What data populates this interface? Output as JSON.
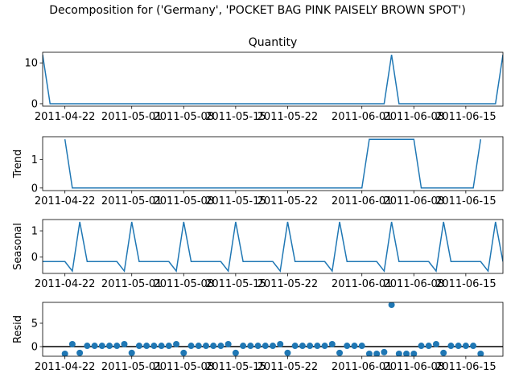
{
  "chart_data": [
    {
      "type": "line",
      "title": "Decomposition for ('Germany', 'POCKET BAG PINK PAISELY BROWN SPOT')",
      "subtitle": "Quantity",
      "color": "#1f77b4",
      "x": [
        "2011-04-19",
        "2011-04-20",
        "2011-04-21",
        "2011-04-22",
        "2011-04-23",
        "2011-04-24",
        "2011-04-25",
        "2011-04-26",
        "2011-04-27",
        "2011-04-28",
        "2011-04-29",
        "2011-04-30",
        "2011-05-01",
        "2011-05-02",
        "2011-05-03",
        "2011-05-04",
        "2011-05-05",
        "2011-05-06",
        "2011-05-07",
        "2011-05-08",
        "2011-05-09",
        "2011-05-10",
        "2011-05-11",
        "2011-05-12",
        "2011-05-13",
        "2011-05-14",
        "2011-05-15",
        "2011-05-16",
        "2011-05-17",
        "2011-05-18",
        "2011-05-19",
        "2011-05-20",
        "2011-05-21",
        "2011-05-22",
        "2011-05-23",
        "2011-05-24",
        "2011-05-25",
        "2011-05-26",
        "2011-05-27",
        "2011-05-28",
        "2011-05-29",
        "2011-05-30",
        "2011-05-31",
        "2011-06-01",
        "2011-06-02",
        "2011-06-03",
        "2011-06-04",
        "2011-06-05",
        "2011-06-06",
        "2011-06-07",
        "2011-06-08",
        "2011-06-09",
        "2011-06-10",
        "2011-06-11",
        "2011-06-12",
        "2011-06-13",
        "2011-06-14",
        "2011-06-15",
        "2011-06-16",
        "2011-06-17",
        "2011-06-18",
        "2011-06-19",
        "2011-06-20"
      ],
      "values": [
        12,
        0,
        0,
        0,
        0,
        0,
        0,
        0,
        0,
        0,
        0,
        0,
        0,
        0,
        0,
        0,
        0,
        0,
        0,
        0,
        0,
        0,
        0,
        0,
        0,
        0,
        0,
        0,
        0,
        0,
        0,
        0,
        0,
        0,
        0,
        0,
        0,
        0,
        0,
        0,
        0,
        0,
        0,
        0,
        0,
        0,
        0,
        12,
        0,
        0,
        0,
        0,
        0,
        0,
        0,
        0,
        0,
        0,
        0,
        0,
        0,
        0,
        12
      ],
      "xlim": [
        "2011-04-19",
        "2011-06-20"
      ],
      "xticks": [
        "2011-04-22",
        "2011-05-01",
        "2011-05-08",
        "2011-05-15",
        "2011-05-22",
        "2011-06-01",
        "2011-06-08",
        "2011-06-15"
      ],
      "ylim": [
        -0.6,
        12.6
      ],
      "yticks": [
        0,
        10
      ]
    },
    {
      "type": "line",
      "ylabel": "Trend",
      "color": "#1f77b4",
      "x": [
        "2011-04-19",
        "2011-04-20",
        "2011-04-21",
        "2011-04-22",
        "2011-04-23",
        "2011-04-24",
        "2011-04-25",
        "2011-04-26",
        "2011-04-27",
        "2011-04-28",
        "2011-04-29",
        "2011-04-30",
        "2011-05-01",
        "2011-05-02",
        "2011-05-03",
        "2011-05-04",
        "2011-05-05",
        "2011-05-06",
        "2011-05-07",
        "2011-05-08",
        "2011-05-09",
        "2011-05-10",
        "2011-05-11",
        "2011-05-12",
        "2011-05-13",
        "2011-05-14",
        "2011-05-15",
        "2011-05-16",
        "2011-05-17",
        "2011-05-18",
        "2011-05-19",
        "2011-05-20",
        "2011-05-21",
        "2011-05-22",
        "2011-05-23",
        "2011-05-24",
        "2011-05-25",
        "2011-05-26",
        "2011-05-27",
        "2011-05-28",
        "2011-05-29",
        "2011-05-30",
        "2011-05-31",
        "2011-06-01",
        "2011-06-02",
        "2011-06-03",
        "2011-06-04",
        "2011-06-05",
        "2011-06-06",
        "2011-06-07",
        "2011-06-08",
        "2011-06-09",
        "2011-06-10",
        "2011-06-11",
        "2011-06-12",
        "2011-06-13",
        "2011-06-14",
        "2011-06-15",
        "2011-06-16",
        "2011-06-17",
        "2011-06-18",
        "2011-06-19",
        "2011-06-20"
      ],
      "values": [
        null,
        null,
        null,
        1.71,
        0,
        0,
        0,
        0,
        0,
        0,
        0,
        0,
        0,
        0,
        0,
        0,
        0,
        0,
        0,
        0,
        0,
        0,
        0,
        0,
        0,
        0,
        0,
        0,
        0,
        0,
        0,
        0,
        0,
        0,
        0,
        0,
        0,
        0,
        0,
        0,
        0,
        0,
        0,
        0,
        1.71,
        1.71,
        1.71,
        1.71,
        1.71,
        1.71,
        1.71,
        0,
        0,
        0,
        0,
        0,
        0,
        0,
        0,
        1.71,
        null,
        null,
        null
      ],
      "xlim": [
        "2011-04-19",
        "2011-06-20"
      ],
      "xticks": [
        "2011-04-22",
        "2011-05-01",
        "2011-05-08",
        "2011-05-15",
        "2011-05-22",
        "2011-06-01",
        "2011-06-08",
        "2011-06-15"
      ],
      "ylim": [
        -0.09,
        1.8
      ],
      "yticks": [
        0,
        1
      ]
    },
    {
      "type": "line",
      "ylabel": "Seasonal",
      "color": "#1f77b4",
      "x": [
        "2011-04-19",
        "2011-04-20",
        "2011-04-21",
        "2011-04-22",
        "2011-04-23",
        "2011-04-24",
        "2011-04-25",
        "2011-04-26",
        "2011-04-27",
        "2011-04-28",
        "2011-04-29",
        "2011-04-30",
        "2011-05-01",
        "2011-05-02",
        "2011-05-03",
        "2011-05-04",
        "2011-05-05",
        "2011-05-06",
        "2011-05-07",
        "2011-05-08",
        "2011-05-09",
        "2011-05-10",
        "2011-05-11",
        "2011-05-12",
        "2011-05-13",
        "2011-05-14",
        "2011-05-15",
        "2011-05-16",
        "2011-05-17",
        "2011-05-18",
        "2011-05-19",
        "2011-05-20",
        "2011-05-21",
        "2011-05-22",
        "2011-05-23",
        "2011-05-24",
        "2011-05-25",
        "2011-05-26",
        "2011-05-27",
        "2011-05-28",
        "2011-05-29",
        "2011-05-30",
        "2011-05-31",
        "2011-06-01",
        "2011-06-02",
        "2011-06-03",
        "2011-06-04",
        "2011-06-05",
        "2011-06-06",
        "2011-06-07",
        "2011-06-08",
        "2011-06-09",
        "2011-06-10",
        "2011-06-11",
        "2011-06-12",
        "2011-06-13",
        "2011-06-14",
        "2011-06-15",
        "2011-06-16",
        "2011-06-17",
        "2011-06-18",
        "2011-06-19",
        "2011-06-20"
      ],
      "values": [
        -0.17,
        -0.17,
        -0.17,
        -0.17,
        -0.53,
        1.34,
        -0.17,
        -0.17,
        -0.17,
        -0.17,
        -0.17,
        -0.53,
        1.34,
        -0.17,
        -0.17,
        -0.17,
        -0.17,
        -0.17,
        -0.53,
        1.34,
        -0.17,
        -0.17,
        -0.17,
        -0.17,
        -0.17,
        -0.53,
        1.34,
        -0.17,
        -0.17,
        -0.17,
        -0.17,
        -0.17,
        -0.53,
        1.34,
        -0.17,
        -0.17,
        -0.17,
        -0.17,
        -0.17,
        -0.53,
        1.34,
        -0.17,
        -0.17,
        -0.17,
        -0.17,
        -0.17,
        -0.53,
        1.34,
        -0.17,
        -0.17,
        -0.17,
        -0.17,
        -0.17,
        -0.53,
        1.34,
        -0.17,
        -0.17,
        -0.17,
        -0.17,
        -0.17,
        -0.53,
        1.34,
        -0.17
      ],
      "xlim": [
        "2011-04-19",
        "2011-06-20"
      ],
      "xticks": [
        "2011-04-22",
        "2011-05-01",
        "2011-05-08",
        "2011-05-15",
        "2011-05-22",
        "2011-06-01",
        "2011-06-08",
        "2011-06-15"
      ],
      "ylim": [
        -0.62,
        1.43
      ],
      "yticks": [
        0,
        1
      ]
    },
    {
      "type": "scatter",
      "ylabel": "Resid",
      "color": "#1f77b4",
      "zero_line": true,
      "x": [
        "2011-04-19",
        "2011-04-20",
        "2011-04-21",
        "2011-04-22",
        "2011-04-23",
        "2011-04-24",
        "2011-04-25",
        "2011-04-26",
        "2011-04-27",
        "2011-04-28",
        "2011-04-29",
        "2011-04-30",
        "2011-05-01",
        "2011-05-02",
        "2011-05-03",
        "2011-05-04",
        "2011-05-05",
        "2011-05-06",
        "2011-05-07",
        "2011-05-08",
        "2011-05-09",
        "2011-05-10",
        "2011-05-11",
        "2011-05-12",
        "2011-05-13",
        "2011-05-14",
        "2011-05-15",
        "2011-05-16",
        "2011-05-17",
        "2011-05-18",
        "2011-05-19",
        "2011-05-20",
        "2011-05-21",
        "2011-05-22",
        "2011-05-23",
        "2011-05-24",
        "2011-05-25",
        "2011-05-26",
        "2011-05-27",
        "2011-05-28",
        "2011-05-29",
        "2011-05-30",
        "2011-05-31",
        "2011-06-01",
        "2011-06-02",
        "2011-06-03",
        "2011-06-04",
        "2011-06-05",
        "2011-06-06",
        "2011-06-07",
        "2011-06-08",
        "2011-06-09",
        "2011-06-10",
        "2011-06-11",
        "2011-06-12",
        "2011-06-13",
        "2011-06-14",
        "2011-06-15",
        "2011-06-16",
        "2011-06-17",
        "2011-06-18",
        "2011-06-19",
        "2011-06-20"
      ],
      "values": [
        null,
        null,
        null,
        -1.54,
        0.53,
        -1.34,
        0.17,
        0.17,
        0.17,
        0.17,
        0.17,
        0.53,
        -1.34,
        0.17,
        0.17,
        0.17,
        0.17,
        0.17,
        0.53,
        -1.34,
        0.17,
        0.17,
        0.17,
        0.17,
        0.17,
        0.53,
        -1.34,
        0.17,
        0.17,
        0.17,
        0.17,
        0.17,
        0.53,
        -1.34,
        0.17,
        0.17,
        0.17,
        0.17,
        0.17,
        0.53,
        -1.34,
        0.17,
        0.17,
        0.17,
        -1.54,
        -1.54,
        -1.18,
        8.95,
        -1.54,
        -1.54,
        -1.54,
        0.17,
        0.17,
        0.53,
        -1.34,
        0.17,
        0.17,
        0.17,
        0.17,
        -1.54,
        null,
        null,
        null
      ],
      "xlim": [
        "2011-04-19",
        "2011-06-20"
      ],
      "xticks": [
        "2011-04-22",
        "2011-05-01",
        "2011-05-08",
        "2011-05-15",
        "2011-05-22",
        "2011-06-01",
        "2011-06-08",
        "2011-06-15"
      ],
      "ylim": [
        -2.06,
        9.47
      ],
      "yticks": [
        0,
        5
      ]
    }
  ]
}
